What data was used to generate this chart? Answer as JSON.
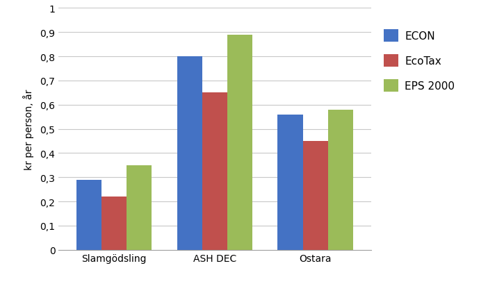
{
  "categories": [
    "Slamgödsling",
    "ASH DEC",
    "Ostara"
  ],
  "series": [
    {
      "name": "ECON",
      "color": "#4472C4",
      "values": [
        0.29,
        0.8,
        0.56
      ]
    },
    {
      "name": "EcoTax",
      "color": "#C0504D",
      "values": [
        0.22,
        0.65,
        0.45
      ]
    },
    {
      "name": "EPS 2000",
      "color": "#9BBB59",
      "values": [
        0.35,
        0.89,
        0.58
      ]
    }
  ],
  "ylabel": "kr per person, år",
  "ylim": [
    0,
    1.0
  ],
  "yticks": [
    0,
    0.1,
    0.2,
    0.3,
    0.4,
    0.5,
    0.6,
    0.7,
    0.8,
    0.9,
    1
  ],
  "ytick_labels": [
    "0",
    "0,1",
    "0,2",
    "0,3",
    "0,4",
    "0,5",
    "0,6",
    "0,7",
    "0,8",
    "0,9",
    "1"
  ],
  "bar_width": 0.25,
  "background_color": "#FFFFFF",
  "grid_color": "#C8C8C8",
  "legend_fontsize": 11,
  "axis_fontsize": 10,
  "tick_fontsize": 10
}
